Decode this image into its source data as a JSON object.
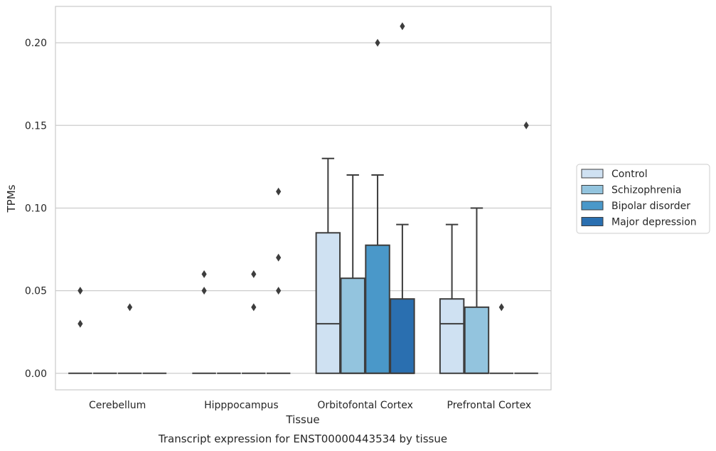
{
  "chart_data": {
    "type": "box",
    "caption": "Transcript expression for ENST00000443534 by tissue",
    "xlabel": "Tissue",
    "ylabel": "TPMs",
    "ylim": [
      -0.01,
      0.222
    ],
    "yticks": [
      0.0,
      0.05,
      0.1,
      0.15,
      0.2
    ],
    "ytick_labels": [
      "0.00",
      "0.05",
      "0.10",
      "0.15",
      "0.20"
    ],
    "grid": "horizontal",
    "legend_position": "right",
    "categories": [
      "Cerebellum",
      "Hipppocampus",
      "Orbitofontal Cortex",
      "Prefrontal Cortex"
    ],
    "series": [
      {
        "name": "Control",
        "color": "#cfe1f2",
        "boxes": [
          {
            "q1": 0.0,
            "median": 0.0,
            "q3": 0.0,
            "whisker_low": 0.0,
            "whisker_high": 0.0,
            "outliers": [
              0.05,
              0.03
            ]
          },
          {
            "q1": 0.0,
            "median": 0.0,
            "q3": 0.0,
            "whisker_low": 0.0,
            "whisker_high": 0.0,
            "outliers": [
              0.06,
              0.05
            ]
          },
          {
            "q1": 0.0,
            "median": 0.03,
            "q3": 0.085,
            "whisker_low": 0.0,
            "whisker_high": 0.13,
            "outliers": []
          },
          {
            "q1": 0.0,
            "median": 0.03,
            "q3": 0.045,
            "whisker_low": 0.0,
            "whisker_high": 0.09,
            "outliers": []
          }
        ]
      },
      {
        "name": "Schizophrenia",
        "color": "#93c4de",
        "boxes": [
          {
            "q1": 0.0,
            "median": 0.0,
            "q3": 0.0,
            "whisker_low": 0.0,
            "whisker_high": 0.0,
            "outliers": []
          },
          {
            "q1": 0.0,
            "median": 0.0,
            "q3": 0.0,
            "whisker_low": 0.0,
            "whisker_high": 0.0,
            "outliers": []
          },
          {
            "q1": 0.0,
            "median": 0.0,
            "q3": 0.0575,
            "whisker_low": 0.0,
            "whisker_high": 0.12,
            "outliers": []
          },
          {
            "q1": 0.0,
            "median": 0.0,
            "q3": 0.04,
            "whisker_low": 0.0,
            "whisker_high": 0.1,
            "outliers": []
          }
        ]
      },
      {
        "name": "Bipolar disorder",
        "color": "#4a98c9",
        "boxes": [
          {
            "q1": 0.0,
            "median": 0.0,
            "q3": 0.0,
            "whisker_low": 0.0,
            "whisker_high": 0.0,
            "outliers": [
              0.04
            ]
          },
          {
            "q1": 0.0,
            "median": 0.0,
            "q3": 0.0,
            "whisker_low": 0.0,
            "whisker_high": 0.0,
            "outliers": [
              0.06,
              0.04
            ]
          },
          {
            "q1": 0.0,
            "median": 0.0,
            "q3": 0.0775,
            "whisker_low": 0.0,
            "whisker_high": 0.12,
            "outliers": [
              0.2
            ]
          },
          {
            "q1": 0.0,
            "median": 0.0,
            "q3": 0.0,
            "whisker_low": 0.0,
            "whisker_high": 0.0,
            "outliers": [
              0.04
            ]
          }
        ]
      },
      {
        "name": "Major depression",
        "color": "#2a6fb0",
        "boxes": [
          {
            "q1": 0.0,
            "median": 0.0,
            "q3": 0.0,
            "whisker_low": 0.0,
            "whisker_high": 0.0,
            "outliers": []
          },
          {
            "q1": 0.0,
            "median": 0.0,
            "q3": 0.0,
            "whisker_low": 0.0,
            "whisker_high": 0.0,
            "outliers": [
              0.11,
              0.07,
              0.05
            ]
          },
          {
            "q1": 0.0,
            "median": 0.0,
            "q3": 0.045,
            "whisker_low": 0.0,
            "whisker_high": 0.09,
            "outliers": [
              0.21
            ]
          },
          {
            "q1": 0.0,
            "median": 0.0,
            "q3": 0.0,
            "whisker_low": 0.0,
            "whisker_high": 0.0,
            "outliers": [
              0.15
            ]
          }
        ]
      }
    ]
  }
}
